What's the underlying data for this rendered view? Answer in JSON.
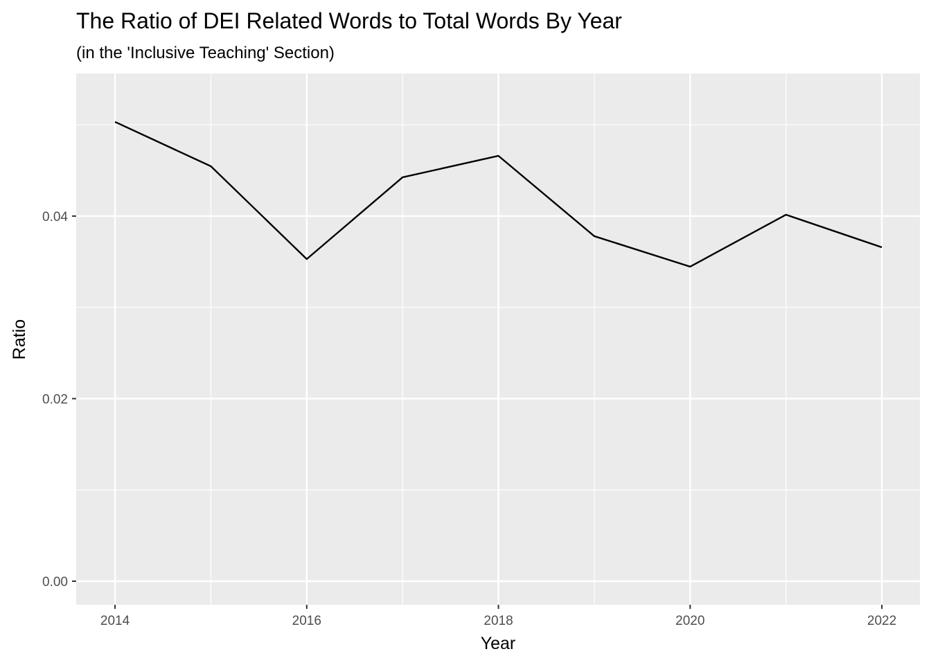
{
  "chart_data": {
    "type": "line",
    "title": "The Ratio of DEI Related Words to Total Words By Year",
    "subtitle": "(in the 'Inclusive Teaching' Section)",
    "x_label": "Year",
    "y_label": "Ratio",
    "x": [
      2014,
      2015,
      2016,
      2017,
      2018,
      2019,
      2020,
      2021,
      2022
    ],
    "series": [
      {
        "name": "Ratio",
        "color": "#000000",
        "values": [
          0.05032,
          0.04546,
          0.03529,
          0.04425,
          0.0466,
          0.0378,
          0.03446,
          0.04015,
          0.03658
        ]
      }
    ],
    "xlim": [
      2013.595,
      2022.397
    ],
    "ylim": [
      -0.00258,
      0.05563
    ],
    "xticks": [
      2014,
      2016,
      2018,
      2020,
      2022
    ],
    "yticks": [
      {
        "value": 0,
        "label": "0.00"
      },
      0.02,
      0.04
    ],
    "x_minor_ticks": [
      2015,
      2017,
      2019,
      2021
    ],
    "y_minor_ticks": [
      0.01,
      0.03,
      0.05
    ],
    "grid": true,
    "panel_color": "#ebebeb"
  }
}
